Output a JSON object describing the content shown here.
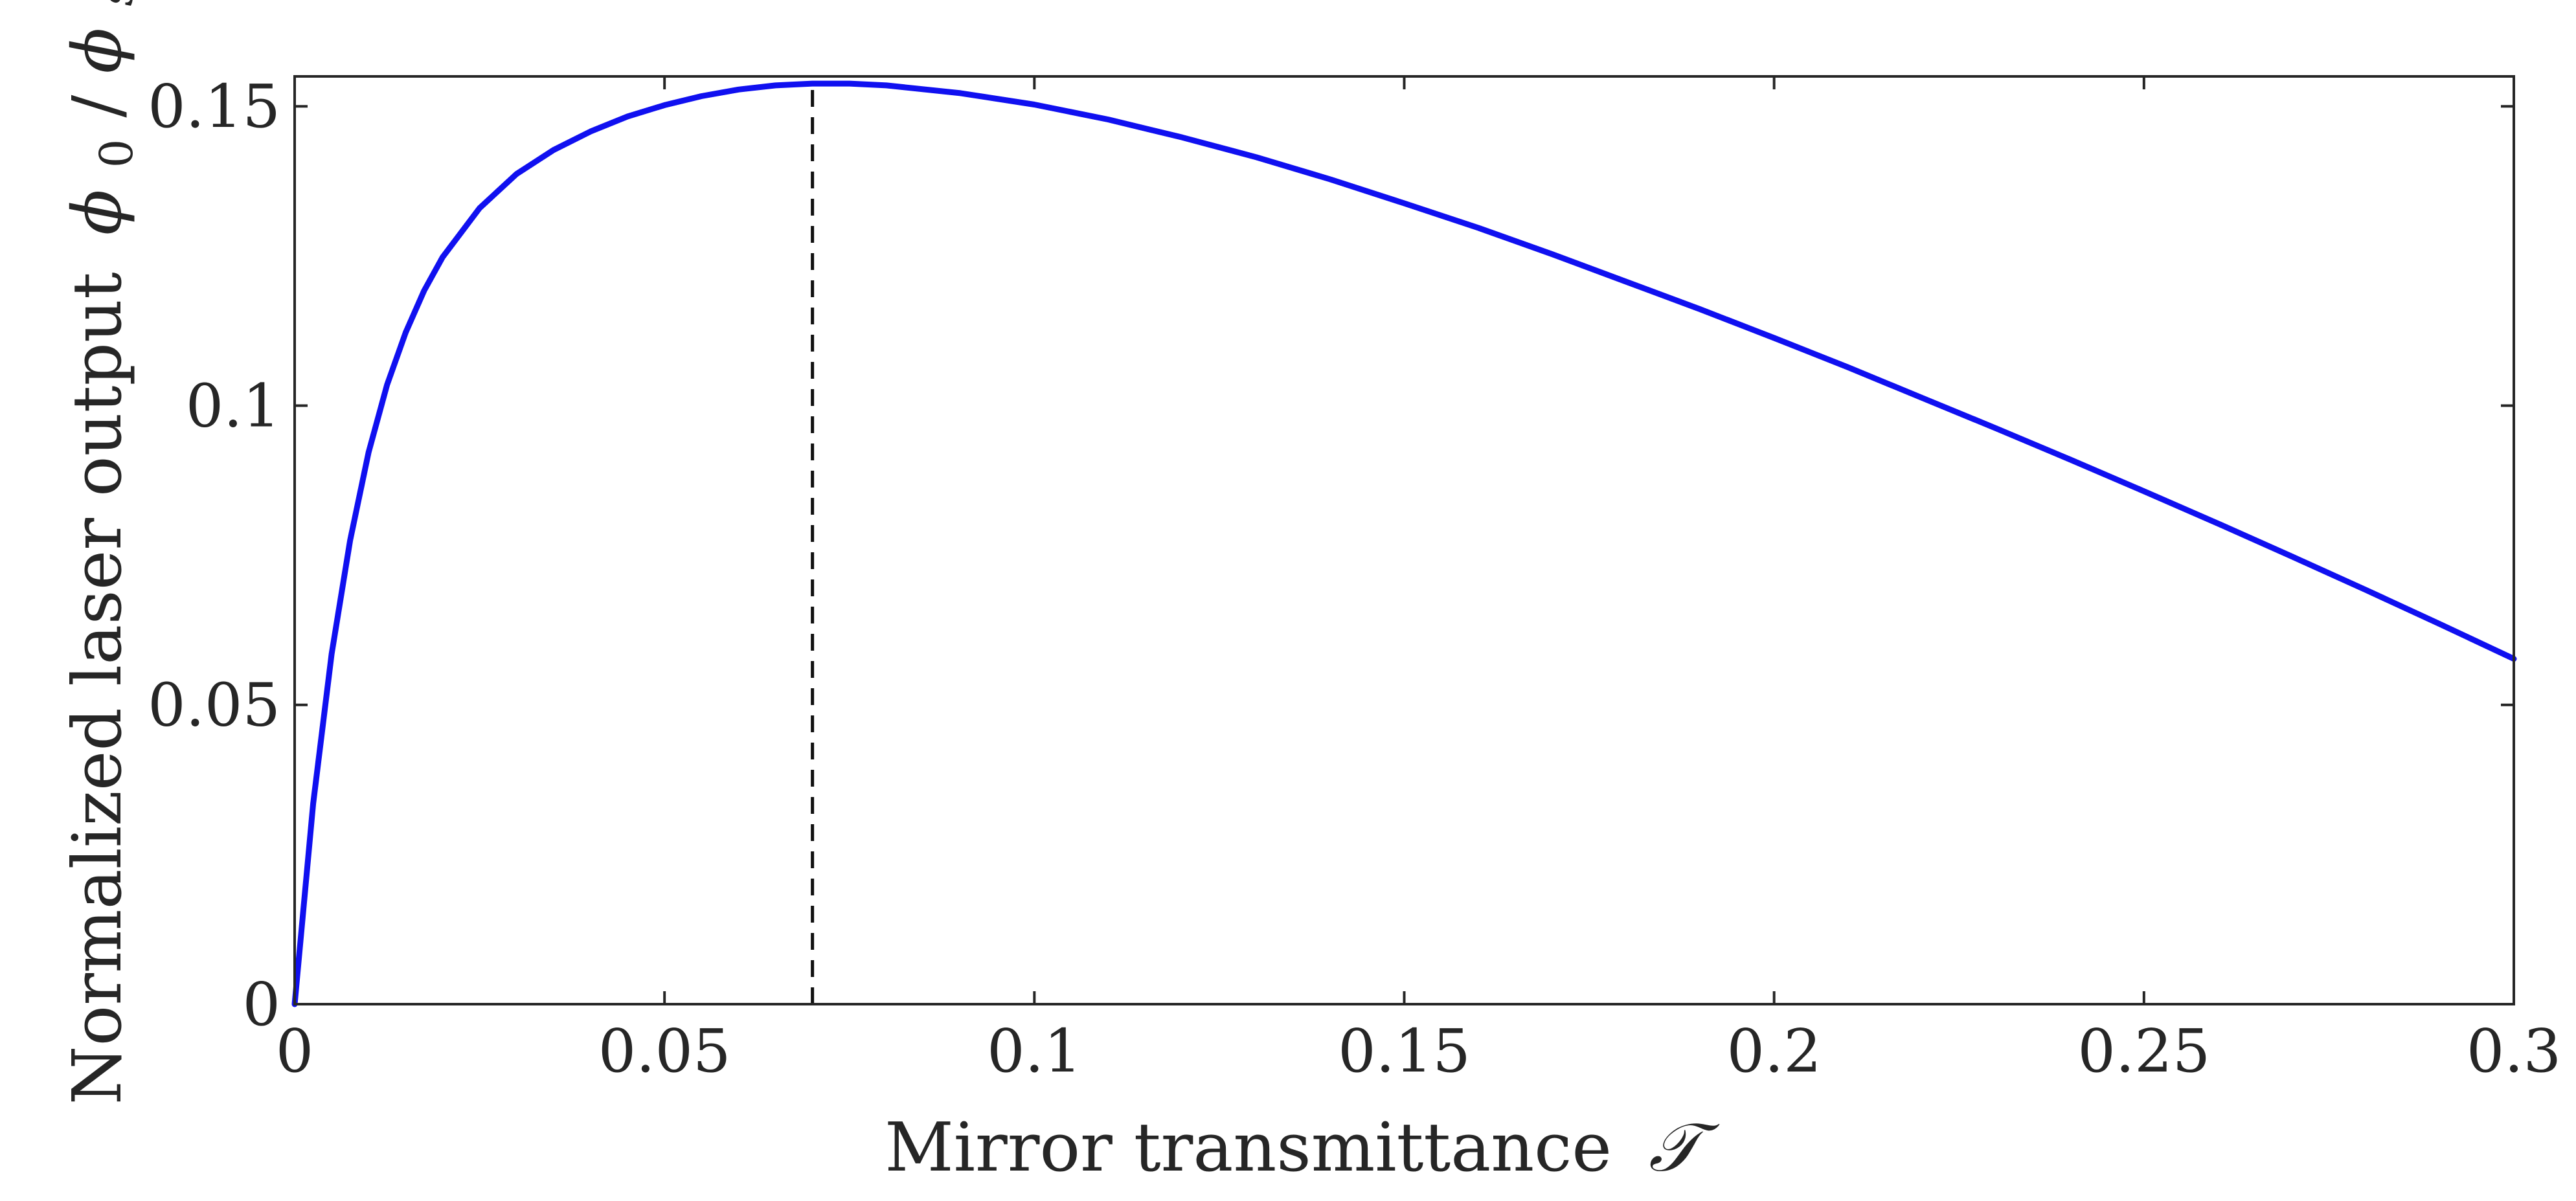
{
  "chart_data": {
    "type": "line",
    "title": "",
    "xlabel": "Mirror transmittance",
    "xlabel_symbol": "𝒯",
    "ylabel": "Normalized laser output",
    "ylabel_math": {
      "phi": "ϕ",
      "sub0": "0",
      "slash": "/",
      "sub_s": "s"
    },
    "xlim": [
      0,
      0.3
    ],
    "ylim": [
      0,
      0.155
    ],
    "grid": false,
    "legend": "none",
    "x_ticks": [
      {
        "value": 0,
        "label": "0"
      },
      {
        "value": 0.05,
        "label": "0.05"
      },
      {
        "value": 0.1,
        "label": "0.1"
      },
      {
        "value": 0.15,
        "label": "0.15"
      },
      {
        "value": 0.2,
        "label": "0.2"
      },
      {
        "value": 0.25,
        "label": "0.25"
      },
      {
        "value": 0.3,
        "label": "0.3"
      }
    ],
    "y_ticks": [
      {
        "value": 0,
        "label": "0"
      },
      {
        "value": 0.05,
        "label": "0.05"
      },
      {
        "value": 0.1,
        "label": "0.1"
      },
      {
        "value": 0.15,
        "label": "0.15"
      }
    ],
    "series": [
      {
        "color": "#1010f0",
        "x": [
          0,
          0.0025,
          0.005,
          0.0075,
          0.01,
          0.0125,
          0.015,
          0.0175,
          0.02,
          0.025,
          0.03,
          0.035,
          0.04,
          0.045,
          0.05,
          0.055,
          0.06,
          0.065,
          0.07,
          0.075,
          0.08,
          0.09,
          0.1,
          0.11,
          0.12,
          0.13,
          0.14,
          0.15,
          0.16,
          0.17,
          0.18,
          0.19,
          0.2,
          0.21,
          0.22,
          0.23,
          0.24,
          0.25,
          0.26,
          0.27,
          0.28,
          0.29,
          0.3
        ],
        "y": [
          0,
          0.0335,
          0.0585,
          0.0775,
          0.0922,
          0.1035,
          0.1122,
          0.1192,
          0.1248,
          0.133,
          0.1387,
          0.1427,
          0.1458,
          0.1483,
          0.1502,
          0.1517,
          0.1528,
          0.1535,
          0.1538,
          0.1538,
          0.1535,
          0.1522,
          0.1503,
          0.1478,
          0.1448,
          0.1415,
          0.1378,
          0.1338,
          0.1297,
          0.1253,
          0.1207,
          0.1161,
          0.1113,
          0.1064,
          0.1013,
          0.0962,
          0.091,
          0.0857,
          0.0803,
          0.0748,
          0.0692,
          0.0635,
          0.0577
        ]
      }
    ],
    "annotations": [
      {
        "type": "vline",
        "x": 0.07,
        "y_from": 0,
        "y_to": 0.1538,
        "style": "dashed",
        "color": "#111111"
      }
    ]
  }
}
